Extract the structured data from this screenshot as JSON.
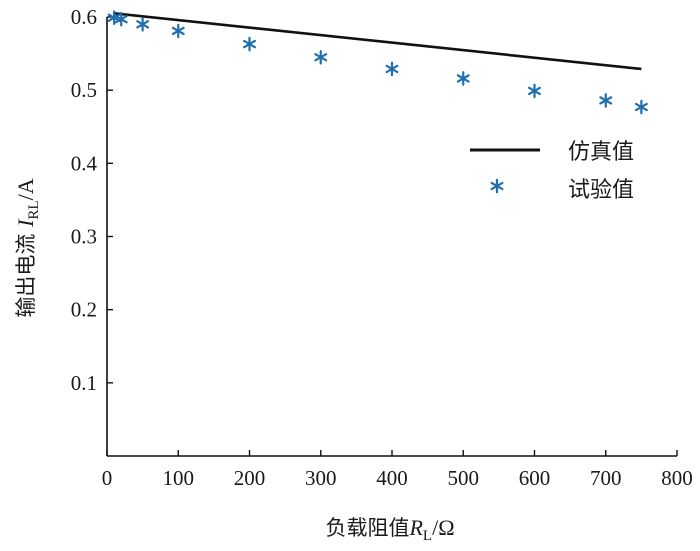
{
  "chart_data": {
    "type": "line+scatter",
    "xlabel_prefix": "负载阻值",
    "xlabel_var": "R",
    "xlabel_sub": "L",
    "xlabel_unit": "/Ω",
    "ylabel_prefix": "输出电流 ",
    "ylabel_var": "I",
    "ylabel_sub": "RL",
    "ylabel_unit": "/A",
    "xlim": [
      0,
      800
    ],
    "ylim": [
      0,
      0.6
    ],
    "x_ticks": [
      0,
      100,
      200,
      300,
      400,
      500,
      600,
      700,
      800
    ],
    "y_ticks": [
      0.1,
      0.2,
      0.3,
      0.4,
      0.5,
      0.6
    ],
    "x_tick_labels": [
      "0",
      "100",
      "200",
      "300",
      "400",
      "500",
      "600",
      "700",
      "800"
    ],
    "y_tick_labels": [
      "0.1",
      "0.2",
      "0.3",
      "0.4",
      "0.5",
      "0.6"
    ],
    "legend_position": "right",
    "series": [
      {
        "name": "仿真值",
        "kind": "line",
        "color": "#111111",
        "x": [
          10,
          750
        ],
        "y": [
          0.605,
          0.529
        ]
      },
      {
        "name": "试验值",
        "kind": "scatter",
        "marker": "asterisk",
        "color": "#1f6fb0",
        "x": [
          10,
          20,
          50,
          100,
          200,
          300,
          400,
          500,
          600,
          700,
          750
        ],
        "y": [
          0.599,
          0.597,
          0.59,
          0.581,
          0.563,
          0.545,
          0.529,
          0.516,
          0.499,
          0.486,
          0.477
        ]
      }
    ]
  }
}
